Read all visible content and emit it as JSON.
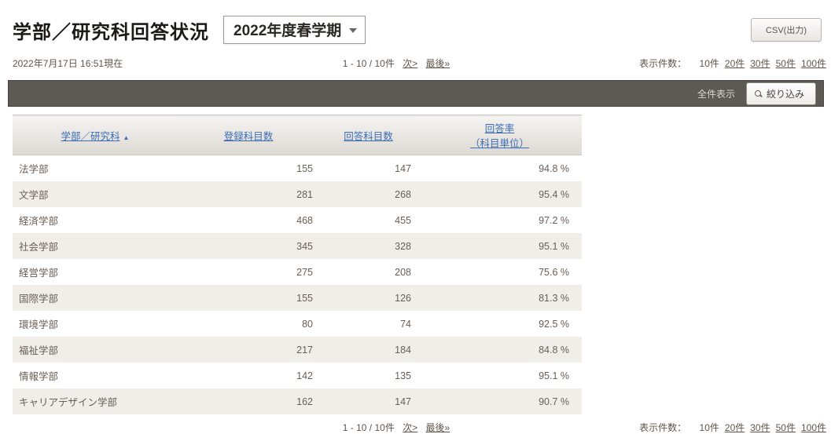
{
  "header": {
    "title": "学部／研究科回答状況",
    "semester_selector": "2022年度春学期",
    "csv_button": "CSV(出力)"
  },
  "meta": {
    "timestamp": "2022年7月17日 16:51現在"
  },
  "pagination": {
    "range": "1 - 10 / 10件",
    "next": "次>",
    "last": "最後»"
  },
  "page_size": {
    "label": "表示件数：",
    "current": "10件",
    "options": [
      "20件",
      "30件",
      "50件",
      "100件"
    ]
  },
  "toolbar": {
    "show_all": "全件表示",
    "filter_button": "絞り込み"
  },
  "table": {
    "columns": [
      {
        "label": "学部／研究科",
        "sort": "▲"
      },
      {
        "label": "登録科目数"
      },
      {
        "label": "回答科目数"
      },
      {
        "label": "回答率",
        "label2": "（科目単位）"
      }
    ],
    "rows": [
      {
        "name": "法学部",
        "registered": "155",
        "answered": "147",
        "rate": "94.8 %"
      },
      {
        "name": "文学部",
        "registered": "281",
        "answered": "268",
        "rate": "95.4 %"
      },
      {
        "name": "経済学部",
        "registered": "468",
        "answered": "455",
        "rate": "97.2 %"
      },
      {
        "name": "社会学部",
        "registered": "345",
        "answered": "328",
        "rate": "95.1 %"
      },
      {
        "name": "経営学部",
        "registered": "275",
        "answered": "208",
        "rate": "75.6 %"
      },
      {
        "name": "国際学部",
        "registered": "155",
        "answered": "126",
        "rate": "81.3 %"
      },
      {
        "name": "環境学部",
        "registered": "80",
        "answered": "74",
        "rate": "92.5 %"
      },
      {
        "name": "福祉学部",
        "registered": "217",
        "answered": "184",
        "rate": "84.8 %"
      },
      {
        "name": "情報学部",
        "registered": "142",
        "answered": "135",
        "rate": "95.1 %"
      },
      {
        "name": "キャリアデザイン学部",
        "registered": "162",
        "answered": "147",
        "rate": "90.7 %"
      }
    ]
  },
  "colors": {
    "accent_link_blue": "#3a6cb5",
    "toolbar_bar": "#5d5a56",
    "body_text": "#5f554c",
    "row_alt": "#f1eeea"
  }
}
